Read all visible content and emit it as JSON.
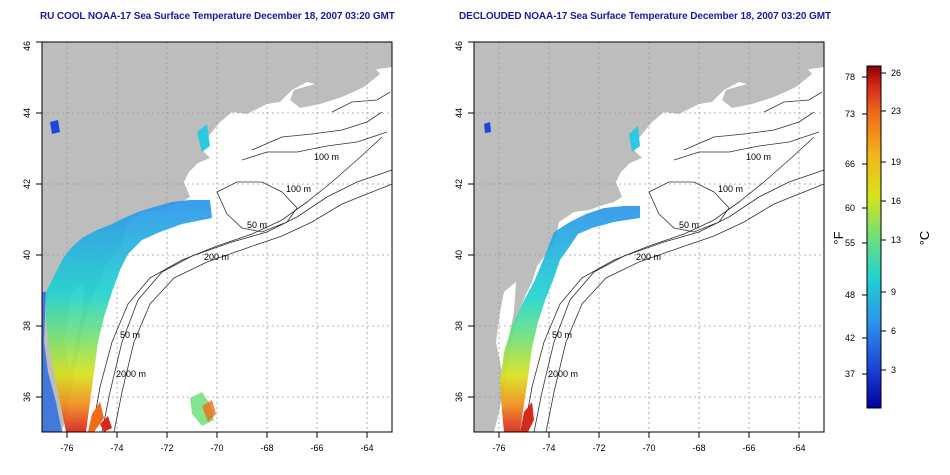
{
  "panels": [
    {
      "title": "RU COOL NOAA-17 Sea Surface Temperature December 18, 2007 03:20 GMT"
    },
    {
      "title": "DECLOUDED NOAA-17 Sea Surface Temperature December 18, 2007 03:20 GMT"
    }
  ],
  "map": {
    "lon_range": [
      -77,
      -63
    ],
    "lat_range": [
      35,
      46
    ],
    "lon_ticks": [
      "-76",
      "-74",
      "-72",
      "-70",
      "-68",
      "-66",
      "-64"
    ],
    "lat_ticks": [
      "36",
      "38",
      "40",
      "42",
      "44",
      "46"
    ],
    "land_color": "#bdbdbd",
    "ocean_color": "#ffffff",
    "grid": "dotted",
    "contour_labels": [
      "100 m",
      "100 m",
      "50 m",
      "200 m",
      "50 m",
      "2000 m"
    ]
  },
  "colorbar": {
    "fahrenheit_label": "°F",
    "celsius_label": "°C",
    "fahrenheit_ticks": [
      "78",
      "73",
      "66",
      "60",
      "55",
      "48",
      "42",
      "37"
    ],
    "celsius_ticks": [
      "26",
      "23",
      "19",
      "16",
      "13",
      "9",
      "6",
      "3"
    ],
    "colors": [
      "#8b0000",
      "#d42a1c",
      "#f06b1a",
      "#f3b41a",
      "#d8e21a",
      "#6fe07a",
      "#1fd3d0",
      "#2c93ec",
      "#1f45d8",
      "#0000a0"
    ]
  }
}
